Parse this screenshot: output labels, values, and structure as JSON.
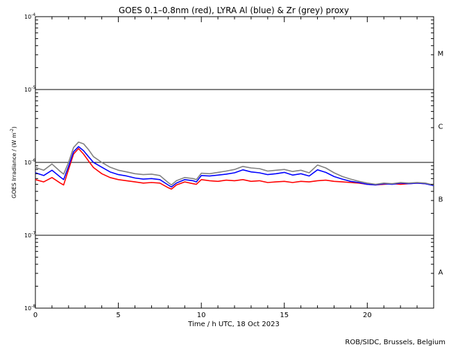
{
  "chart_data": {
    "type": "line",
    "title": "GOES 0.1–0.8nm (red), LYRA Al (blue) & Zr (grey) proxy",
    "xlabel": "Time / h UTC, 18 Oct 2023",
    "ylabel": "GOES Irradiance / (W m",
    "ylabel_sup": "-2",
    "ylabel_close": ")",
    "credit": "ROB/SIDC, Brussels, Belgium",
    "x_range": [
      0,
      24
    ],
    "y_range_log10": [
      -8,
      -4
    ],
    "y_scale": "log",
    "x_ticks": [
      {
        "value": 0,
        "label": "0"
      },
      {
        "value": 5,
        "label": "5"
      },
      {
        "value": 10,
        "label": "10"
      },
      {
        "value": 15,
        "label": "15"
      },
      {
        "value": 20,
        "label": "20"
      }
    ],
    "y_ticks": [
      {
        "exp": -4,
        "base": "10",
        "sup": "-4"
      },
      {
        "exp": -5,
        "base": "10",
        "sup": "-5"
      },
      {
        "exp": -6,
        "base": "10",
        "sup": "-6"
      },
      {
        "exp": -7,
        "base": "10",
        "sup": "-7"
      },
      {
        "exp": -8,
        "base": "10",
        "sup": "-8"
      }
    ],
    "class_lines_exp": [
      -5,
      -6,
      -7
    ],
    "flare_classes": [
      {
        "label": "M",
        "exp_mid": -4.5
      },
      {
        "label": "C",
        "exp_mid": -5.5
      },
      {
        "label": "B",
        "exp_mid": -6.5
      },
      {
        "label": "A",
        "exp_mid": -7.5
      }
    ],
    "series": [
      {
        "color": "#ff0000",
        "x": [
          0,
          0.5,
          1.0,
          1.5,
          1.7,
          2.0,
          2.3,
          2.6,
          2.9,
          3.2,
          3.5,
          4.0,
          4.5,
          5.0,
          5.5,
          6.0,
          6.5,
          7.0,
          7.5,
          8.0,
          8.2,
          8.5,
          9.0,
          9.5,
          9.7,
          10.0,
          10.5,
          11.0,
          11.5,
          12.0,
          12.5,
          13.0,
          13.5,
          14.0,
          14.5,
          15.0,
          15.5,
          16.0,
          16.5,
          17.0,
          17.5,
          18.0,
          18.5,
          19.0,
          19.5,
          20.0,
          20.5,
          21.0,
          21.5,
          22.0,
          22.5,
          23.0,
          23.5,
          24.0
        ],
        "y": [
          5.8e-07,
          5.4e-07,
          6.2e-07,
          5.2e-07,
          4.9e-07,
          8e-07,
          1.3e-06,
          1.55e-06,
          1.3e-06,
          1.05e-06,
          8.5e-07,
          7e-07,
          6.2e-07,
          5.8e-07,
          5.6e-07,
          5.4e-07,
          5.2e-07,
          5.3e-07,
          5.2e-07,
          4.5e-07,
          4.3e-07,
          4.9e-07,
          5.4e-07,
          5.1e-07,
          5e-07,
          5.8e-07,
          5.6e-07,
          5.5e-07,
          5.7e-07,
          5.6e-07,
          5.8e-07,
          5.5e-07,
          5.6e-07,
          5.3e-07,
          5.4e-07,
          5.5e-07,
          5.3e-07,
          5.5e-07,
          5.4e-07,
          5.6e-07,
          5.7e-07,
          5.5e-07,
          5.4e-07,
          5.3e-07,
          5.2e-07,
          5e-07,
          4.9e-07,
          5e-07,
          5.1e-07,
          5e-07,
          5.1e-07,
          5.2e-07,
          5.1e-07,
          4.9e-07
        ]
      },
      {
        "color": "#0000ff",
        "x": [
          0,
          0.5,
          1.0,
          1.5,
          1.7,
          2.0,
          2.3,
          2.6,
          2.9,
          3.2,
          3.5,
          4.0,
          4.5,
          5.0,
          5.5,
          6.0,
          6.5,
          7.0,
          7.5,
          8.0,
          8.2,
          8.5,
          9.0,
          9.5,
          9.7,
          10.0,
          10.5,
          11.0,
          11.5,
          12.0,
          12.5,
          13.0,
          13.5,
          14.0,
          14.5,
          15.0,
          15.5,
          16.0,
          16.5,
          17.0,
          17.5,
          18.0,
          18.5,
          19.0,
          19.5,
          20.0,
          20.5,
          21.0,
          21.5,
          22.0,
          22.5,
          23.0,
          23.5,
          24.0
        ],
        "y": [
          7.2e-07,
          6.6e-07,
          7.8e-07,
          6.3e-07,
          5.8e-07,
          8.8e-07,
          1.4e-06,
          1.65e-06,
          1.45e-06,
          1.2e-06,
          1e-06,
          8.6e-07,
          7.4e-07,
          6.8e-07,
          6.5e-07,
          6.1e-07,
          5.9e-07,
          6e-07,
          5.8e-07,
          4.9e-07,
          4.6e-07,
          5.2e-07,
          5.8e-07,
          5.6e-07,
          5.4e-07,
          6.6e-07,
          6.5e-07,
          6.7e-07,
          6.9e-07,
          7.2e-07,
          7.9e-07,
          7.4e-07,
          7.2e-07,
          6.8e-07,
          7e-07,
          7.3e-07,
          6.7e-07,
          7e-07,
          6.5e-07,
          7.9e-07,
          7.3e-07,
          6.4e-07,
          5.9e-07,
          5.5e-07,
          5.3e-07,
          5e-07,
          4.9e-07,
          5.1e-07,
          5e-07,
          5.2e-07,
          5.1e-07,
          5.2e-07,
          5.1e-07,
          4.8e-07
        ]
      },
      {
        "color": "#808080",
        "x": [
          0,
          0.5,
          1.0,
          1.5,
          1.7,
          2.0,
          2.3,
          2.6,
          2.9,
          3.2,
          3.5,
          4.0,
          4.5,
          5.0,
          5.5,
          6.0,
          6.5,
          7.0,
          7.5,
          8.0,
          8.2,
          8.5,
          9.0,
          9.5,
          9.7,
          10.0,
          10.5,
          11.0,
          11.5,
          12.0,
          12.5,
          13.0,
          13.5,
          14.0,
          14.5,
          15.0,
          15.5,
          16.0,
          16.5,
          17.0,
          17.5,
          18.0,
          18.5,
          19.0,
          19.5,
          20.0,
          20.5,
          21.0,
          21.5,
          22.0,
          22.5,
          23.0,
          23.5,
          24.0
        ],
        "y": [
          8.5e-07,
          7.8e-07,
          9.5e-07,
          7.5e-07,
          6.9e-07,
          1e-06,
          1.6e-06,
          1.9e-06,
          1.8e-06,
          1.5e-06,
          1.2e-06,
          1e-06,
          8.6e-07,
          7.8e-07,
          7.4e-07,
          7e-07,
          6.8e-07,
          6.9e-07,
          6.6e-07,
          5.3e-07,
          4.9e-07,
          5.6e-07,
          6.2e-07,
          6e-07,
          5.8e-07,
          7.1e-07,
          7e-07,
          7.3e-07,
          7.6e-07,
          8e-07,
          8.8e-07,
          8.4e-07,
          8.2e-07,
          7.6e-07,
          7.8e-07,
          8e-07,
          7.5e-07,
          7.8e-07,
          7.2e-07,
          9.2e-07,
          8.4e-07,
          7.2e-07,
          6.4e-07,
          5.9e-07,
          5.5e-07,
          5.2e-07,
          5e-07,
          5.2e-07,
          5.1e-07,
          5.3e-07,
          5.2e-07,
          5.3e-07,
          5.2e-07,
          4.9e-07
        ]
      }
    ],
    "grid": false,
    "legend": "none"
  }
}
